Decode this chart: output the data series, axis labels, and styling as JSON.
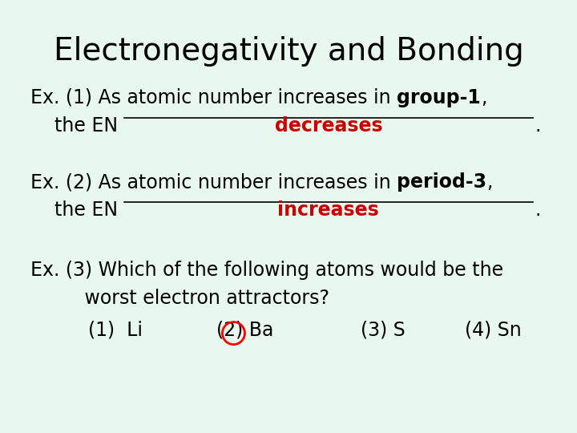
{
  "title": "Electronegativity and Bonding",
  "background_color": "#e8f8ee",
  "title_fontsize": 28,
  "title_color": "#000000",
  "body_fontsize": 17,
  "body_color": "#000000",
  "answer_color": "#cc0000",
  "ex1_normal": "Ex. (1) As atomic number increases in ",
  "ex1_bold": "group-1",
  "ex1_end": ",",
  "ex1_line2_prefix": "    the EN ",
  "ex1_answer": "decreases",
  "ex2_normal": "Ex. (2) As atomic number increases in ",
  "ex2_bold": "period-3",
  "ex2_end": ",",
  "ex2_line2_prefix": "    the EN ",
  "ex2_answer": "increases",
  "ex3_line1": "Ex. (3) Which of the following atoms would be the",
  "ex3_line2": "         worst electron attractors?",
  "ex3_opt1": "(1)  Li",
  "ex3_opt2": "(2) Ba",
  "ex3_opt3": "(3) S",
  "ex3_opt4": "(4) Sn"
}
